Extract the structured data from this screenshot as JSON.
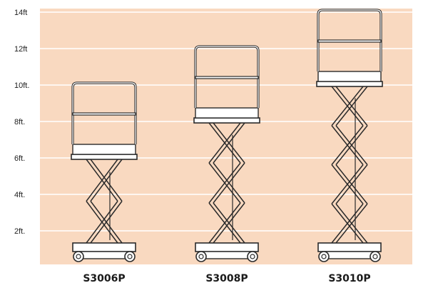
{
  "colors": {
    "background": "#f9d9c0",
    "gridline": "#ffffff",
    "outline": "#2a2a2a",
    "fill": "#ffffff"
  },
  "height_scale": {
    "labels": [
      "2ft.",
      "4ft.",
      "6ft.",
      "8ft.",
      "10ft.",
      "12ft",
      "14ft"
    ],
    "values_ft": [
      2,
      4,
      6,
      8,
      10,
      12,
      14
    ]
  },
  "models": [
    {
      "name": "S3006P",
      "platform_height_ft": 6
    },
    {
      "name": "S3008P",
      "platform_height_ft": 8
    },
    {
      "name": "S3010P",
      "platform_height_ft": 10
    }
  ]
}
